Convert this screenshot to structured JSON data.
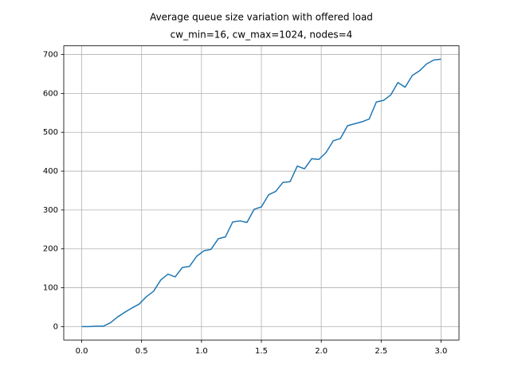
{
  "chart_data": {
    "type": "line",
    "title": "Average queue size variation with offered load",
    "subtitle": "cw_min=16, cw_max=1024, nodes=4",
    "x": [
      0,
      0.06,
      0.12,
      0.18,
      0.24,
      0.3,
      0.36,
      0.42,
      0.48,
      0.54,
      0.6,
      0.66,
      0.72,
      0.78,
      0.84,
      0.9,
      0.96,
      1.02,
      1.08,
      1.14,
      1.2,
      1.26,
      1.32,
      1.38,
      1.44,
      1.5,
      1.56,
      1.62,
      1.68,
      1.74,
      1.8,
      1.86,
      1.92,
      1.98,
      2.04,
      2.1,
      2.16,
      2.22,
      2.28,
      2.34,
      2.4,
      2.46,
      2.52,
      2.58,
      2.64,
      2.7,
      2.76,
      2.82,
      2.88,
      2.94,
      3.0
    ],
    "values": [
      0,
      0,
      1,
      1,
      10,
      25,
      37,
      48,
      58,
      77,
      91,
      120,
      135,
      128,
      152,
      155,
      181,
      195,
      199,
      226,
      231,
      269,
      272,
      268,
      302,
      308,
      339,
      348,
      371,
      373,
      413,
      406,
      432,
      430,
      448,
      478,
      484,
      517,
      522,
      527,
      534,
      578,
      582,
      596,
      628,
      616,
      646,
      658,
      676,
      686,
      688
    ],
    "color": "#1f77b4",
    "xlim": [
      -0.15,
      3.15
    ],
    "xticks": [
      {
        "value": 0,
        "label": "0.0"
      },
      0.5,
      {
        "value": 1,
        "label": "1.0"
      },
      1.5,
      {
        "value": 2,
        "label": "2.0"
      },
      2.5,
      {
        "value": 3,
        "label": "3.0"
      }
    ],
    "ylim": [
      -34.4,
      722.4
    ],
    "yticks": [
      0,
      100,
      200,
      300,
      400,
      500,
      600,
      700
    ],
    "grid": true
  }
}
